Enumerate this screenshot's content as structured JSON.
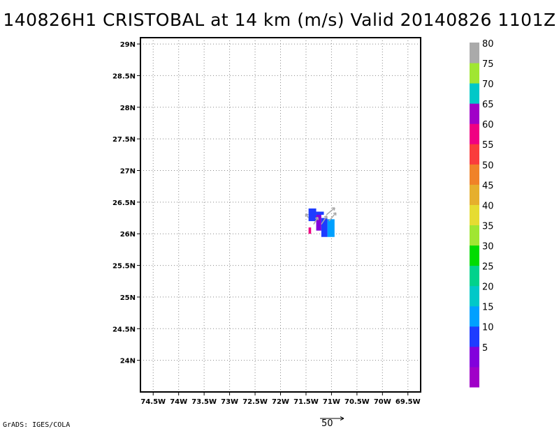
{
  "title": "140826H1 CRISTOBAL at 14 km (m/s) Valid 20140826 1101Z",
  "credit": "GrADS: IGES/COLA",
  "reference_vector": {
    "label": "50",
    "value": 50
  },
  "colors": {
    "grid": "#888888",
    "vector": "#aaaaaa",
    "frame": "#000000"
  },
  "chart_data": {
    "type": "heatmap",
    "title": "140826H1 CRISTOBAL at 14 km (m/s) Valid 20140826 1101Z",
    "units": "m/s",
    "x_axis": {
      "label": "",
      "range": [
        -74.75,
        -69.25
      ],
      "ticks": [
        -74.5,
        -74,
        -73.5,
        -73,
        -72.5,
        -72,
        -71.5,
        -71,
        -70.5,
        -70,
        -69.5
      ],
      "tick_labels": [
        "74.5W",
        "74W",
        "73.5W",
        "73W",
        "72.5W",
        "72W",
        "71.5W",
        "71W",
        "70.5W",
        "70W",
        "69.5W"
      ]
    },
    "y_axis": {
      "label": "",
      "range": [
        23.5,
        29.1
      ],
      "ticks": [
        24,
        24.5,
        25,
        25.5,
        26,
        26.5,
        27,
        27.5,
        28,
        28.5,
        29
      ],
      "tick_labels": [
        "24N",
        "24.5N",
        "25N",
        "25.5N",
        "26N",
        "26.5N",
        "27N",
        "27.5N",
        "28N",
        "28.5N",
        "29N"
      ]
    },
    "grid": true,
    "grid_style": "dotted",
    "colorbar": {
      "placement": "right",
      "levels": [
        {
          "color": "#a000c8",
          "label": ""
        },
        {
          "color": "#8200dc",
          "label": "5"
        },
        {
          "color": "#1e3cff",
          "label": "10"
        },
        {
          "color": "#00a0ff",
          "label": "15"
        },
        {
          "color": "#00c8c8",
          "label": "20"
        },
        {
          "color": "#00d28c",
          "label": "25"
        },
        {
          "color": "#00dc00",
          "label": "30"
        },
        {
          "color": "#a0e632",
          "label": "35"
        },
        {
          "color": "#e6dc32",
          "label": "40"
        },
        {
          "color": "#e6af2d",
          "label": "45"
        },
        {
          "color": "#f08228",
          "label": "50"
        },
        {
          "color": "#fa3c3c",
          "label": "55"
        },
        {
          "color": "#f00082",
          "label": "60"
        },
        {
          "color": "#a000c8",
          "label": "65"
        },
        {
          "color": "#00c8c8",
          "label": "70"
        },
        {
          "color": "#a0e632",
          "label": "75"
        },
        {
          "color": "#aaaaaa",
          "label": "80"
        }
      ]
    },
    "cells": [
      {
        "lon": -71.45,
        "lat": 26.2,
        "dlon": 0.15,
        "dlat": 0.2,
        "color": "#1e3cff",
        "value": 10
      },
      {
        "lon": -71.3,
        "lat": 26.05,
        "dlon": 0.1,
        "dlat": 0.25,
        "color": "#8200dc",
        "value": 7
      },
      {
        "lon": -71.3,
        "lat": 26.3,
        "dlon": 0.15,
        "dlat": 0.05,
        "color": "#1e3cff",
        "value": 10
      },
      {
        "lon": -71.2,
        "lat": 25.95,
        "dlon": 0.12,
        "dlat": 0.3,
        "color": "#1e3cff",
        "value": 12
      },
      {
        "lon": -71.08,
        "lat": 25.95,
        "dlon": 0.14,
        "dlat": 0.28,
        "color": "#00a0ff",
        "value": 17
      },
      {
        "lon": -71.45,
        "lat": 26.0,
        "dlon": 0.05,
        "dlat": 0.1,
        "color": "#f00082",
        "value": 60
      }
    ],
    "vectors": [
      {
        "lon": -71.35,
        "lat": 26.15,
        "u": 3,
        "v": 5
      },
      {
        "lon": -71.2,
        "lat": 26.15,
        "u": 4,
        "v": 6
      },
      {
        "lon": -71.05,
        "lat": 26.2,
        "u": 5,
        "v": 6
      },
      {
        "lon": -71.1,
        "lat": 26.3,
        "u": 6,
        "v": 5
      },
      {
        "lon": -71.45,
        "lat": 26.25,
        "u": -2,
        "v": 3
      }
    ]
  }
}
